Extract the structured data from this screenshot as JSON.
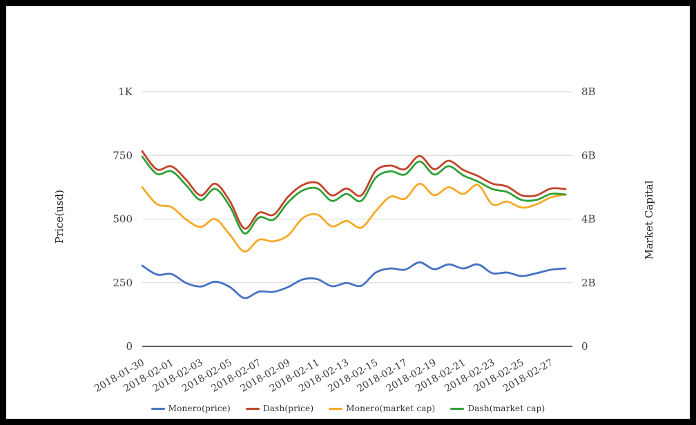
{
  "chart_data": {
    "type": "line",
    "x": [
      "2018-01-30",
      "2018-01-31",
      "2018-02-01",
      "2018-02-02",
      "2018-02-03",
      "2018-02-04",
      "2018-02-05",
      "2018-02-06",
      "2018-02-07",
      "2018-02-08",
      "2018-02-09",
      "2018-02-10",
      "2018-02-11",
      "2018-02-12",
      "2018-02-13",
      "2018-02-14",
      "2018-02-15",
      "2018-02-16",
      "2018-02-17",
      "2018-02-18",
      "2018-02-19",
      "2018-02-20",
      "2018-02-21",
      "2018-02-22",
      "2018-02-23",
      "2018-02-24",
      "2018-02-25",
      "2018-02-26",
      "2018-02-27",
      "2018-02-28"
    ],
    "x_tick_labels": [
      "2018-01-30",
      "2018-02-01",
      "2018-02-03",
      "2018-02-05",
      "2018-02-07",
      "2018-02-09",
      "2018-02-11",
      "2018-02-13",
      "2018-02-15",
      "2018-02-17",
      "2018-02-19",
      "2018-02-21",
      "2018-02-23",
      "2018-02-25",
      "2018-02-27"
    ],
    "series": [
      {
        "name": "Monero(price)",
        "color": "#4472c4",
        "axis": "price",
        "values": [
          317,
          282,
          284,
          249,
          235,
          254,
          233,
          190,
          215,
          214,
          233,
          263,
          264,
          236,
          249,
          238,
          290,
          306,
          301,
          330,
          303,
          322,
          306,
          322,
          287,
          290,
          276,
          287,
          301,
          306
        ]
      },
      {
        "name": "Dash(price)",
        "color": "#c2432a",
        "axis": "price",
        "values": [
          766,
          695,
          707,
          655,
          593,
          639,
          571,
          463,
          525,
          517,
          588,
          634,
          642,
          593,
          620,
          593,
          690,
          710,
          696,
          748,
          696,
          729,
          693,
          669,
          639,
          628,
          593,
          593,
          620,
          618
        ]
      },
      {
        "name": "Monero(market cap)",
        "color": "#f7a928",
        "axis": "market_cap",
        "values": [
          5.0,
          4.47,
          4.38,
          3.99,
          3.75,
          4.0,
          3.51,
          2.98,
          3.35,
          3.3,
          3.49,
          4.03,
          4.14,
          3.77,
          3.94,
          3.73,
          4.25,
          4.7,
          4.64,
          5.11,
          4.75,
          5.0,
          4.79,
          5.07,
          4.46,
          4.55,
          4.36,
          4.46,
          4.68,
          4.77
        ]
      },
      {
        "name": "Dash(market cap)",
        "color": "#2fa037",
        "axis": "market_cap",
        "values": [
          5.96,
          5.42,
          5.5,
          5.07,
          4.6,
          4.95,
          4.4,
          3.55,
          4.05,
          3.98,
          4.53,
          4.9,
          4.96,
          4.57,
          4.79,
          4.57,
          5.3,
          5.5,
          5.4,
          5.81,
          5.4,
          5.66,
          5.37,
          5.18,
          4.94,
          4.85,
          4.6,
          4.6,
          4.79,
          4.77
        ]
      }
    ],
    "left_axis": {
      "title": "Price(usd)",
      "tick_labels": [
        "0",
        "250",
        "500",
        "750",
        "1K"
      ],
      "tick_values": [
        0,
        250,
        500,
        750,
        1000
      ],
      "max": 1000
    },
    "right_axis": {
      "title": "Market Capital",
      "tick_labels": [
        "0",
        "2B",
        "4B",
        "6B",
        "8B"
      ],
      "tick_values": [
        0,
        2,
        4,
        6,
        8
      ],
      "max": 8
    },
    "grid": true,
    "legend_position": "bottom",
    "colors": {
      "grid_line": "#d6d6d6",
      "axis_line": "#2b2b2b",
      "tick_text": "#3d3d3d",
      "frame_border": "#000000",
      "background": "#ffffff"
    }
  }
}
